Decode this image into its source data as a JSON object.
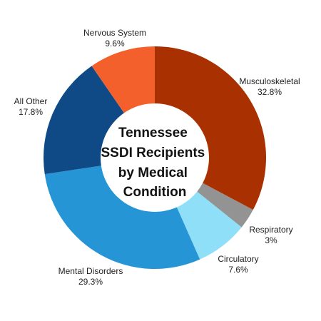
{
  "chart_data": {
    "type": "pie",
    "variant": "donut",
    "title_lines": [
      "Tennessee",
      "SSDI Recipients",
      "by Medical",
      "Condition"
    ],
    "slices": [
      {
        "name": "Musculoskeletal",
        "value": 32.8,
        "value_label": "32.8%",
        "color": "#a93000"
      },
      {
        "name": "Respiratory",
        "value": 3.0,
        "value_label": "3%",
        "color": "#939393"
      },
      {
        "name": "Circulatory",
        "value": 7.6,
        "value_label": "7.6%",
        "color": "#8fdff8"
      },
      {
        "name": "Mental Disorders",
        "value": 29.3,
        "value_label": "29.3%",
        "color": "#2595d6"
      },
      {
        "name": "All Other",
        "value": 17.8,
        "value_label": "17.8%",
        "color": "#0f4a87"
      },
      {
        "name": "Nervous System",
        "value": 9.6,
        "value_label": "9.6%",
        "color": "#f4602b"
      }
    ],
    "start": "top",
    "direction": "clockwise",
    "legend": "none"
  }
}
